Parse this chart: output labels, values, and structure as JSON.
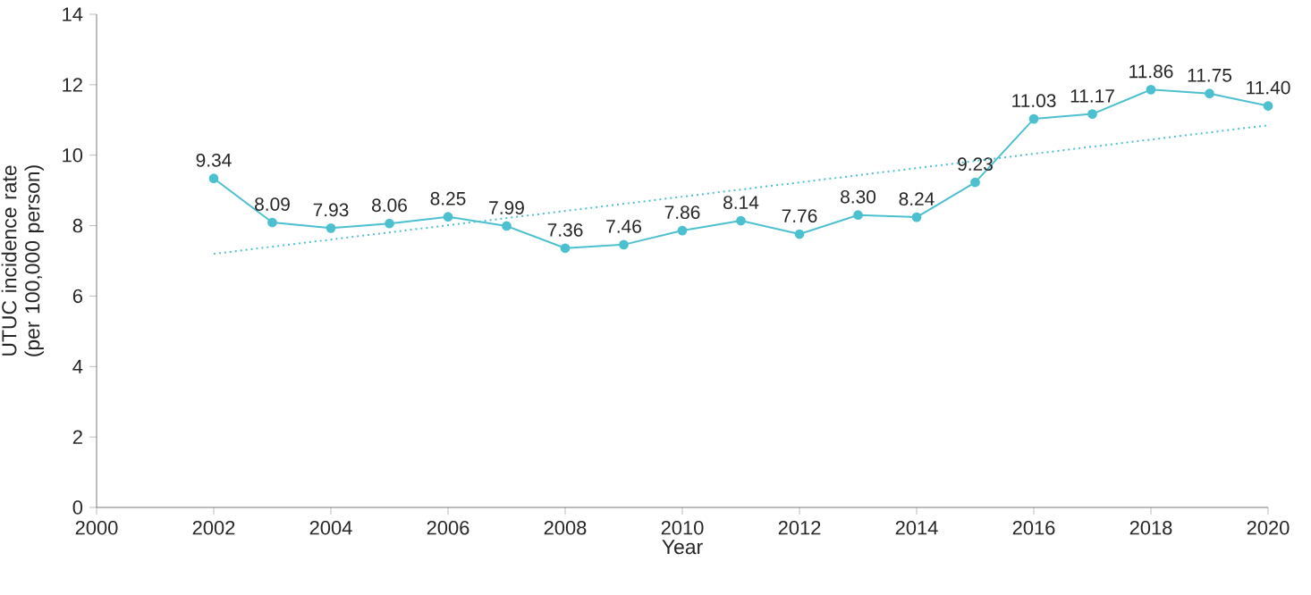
{
  "chart_data": {
    "type": "line",
    "xlabel": "Year",
    "ylabel": "UTUC incidence rate (per 100,000 person)",
    "xlim": [
      2000,
      2020
    ],
    "xticks": [
      2000,
      2002,
      2004,
      2006,
      2008,
      2010,
      2012,
      2014,
      2016,
      2018,
      2020
    ],
    "ylim": [
      0,
      14
    ],
    "yticks": [
      0,
      2,
      4,
      6,
      8,
      10,
      12,
      14
    ],
    "grid": false,
    "series": [
      {
        "x": [
          2002,
          2003,
          2004,
          2005,
          2006,
          2007,
          2008,
          2009,
          2010,
          2011,
          2012,
          2013,
          2014,
          2015,
          2016,
          2017,
          2018,
          2019,
          2020
        ],
        "values": [
          9.34,
          8.09,
          7.93,
          8.06,
          8.25,
          7.99,
          7.36,
          7.46,
          7.86,
          8.14,
          7.76,
          8.3,
          8.24,
          9.23,
          11.03,
          11.17,
          11.86,
          11.75,
          11.4
        ],
        "value_labels": [
          "9.34",
          "8.09",
          "7.93",
          "8.06",
          "8.25",
          "7.99",
          "7.36",
          "7.46",
          "7.86",
          "8.14",
          "7.76",
          "8.30",
          "8.24",
          "9.23",
          "11.03",
          "11.17",
          "11.86",
          "11.75",
          "11.40"
        ],
        "color": "#4cc0cf",
        "marker": "circle",
        "line_style": "solid"
      },
      {
        "x": [
          2002,
          2020
        ],
        "values": [
          7.2,
          10.85
        ],
        "color": "#4cc0cf",
        "marker": "none",
        "line_style": "dotted"
      }
    ]
  }
}
